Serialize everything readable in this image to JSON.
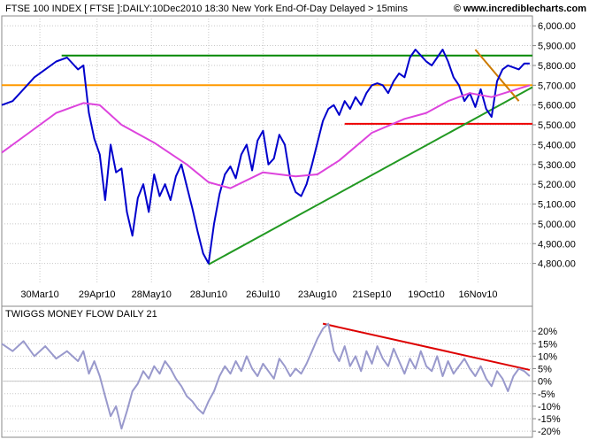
{
  "header": {
    "title": "FTSE 100 INDEX [ FTSE ]:DAILY:10Dec2010 18:30 New York End-Of-Day Delayed > 15mins",
    "brand": "© www.incrediblecharts.com"
  },
  "colors": {
    "price": "#0000cc",
    "ma": "#dd44dd",
    "money_flow": "#9999cc",
    "resistance": "#008800",
    "support_orange": "#ff9900",
    "support_red": "#ee0000",
    "downtrend": "#cc7a00",
    "trendline_green": "#229922",
    "mf_trendline": "#dd0000",
    "grid": "#c8c8c8",
    "panel_bg": "#ffffff"
  },
  "chart_data": [
    {
      "type": "line",
      "title": "FTSE 100 INDEX [ FTSE ]:DAILY:10Dec2010 18:30 New York End-Of-Day Delayed > 15mins",
      "xlabel": "",
      "ylabel": "",
      "grid": true,
      "x_range": [
        0,
        195
      ],
      "ylim": [
        4700,
        6050
      ],
      "x_ticks": [
        {
          "x": 14,
          "label": "30Mar10"
        },
        {
          "x": 35,
          "label": "29Apr10"
        },
        {
          "x": 55,
          "label": "28May10"
        },
        {
          "x": 76,
          "label": "28Jun10"
        },
        {
          "x": 96,
          "label": "26Jul10"
        },
        {
          "x": 116,
          "label": "23Aug10"
        },
        {
          "x": 136,
          "label": "21Sep10"
        },
        {
          "x": 156,
          "label": "19Oct10"
        },
        {
          "x": 175,
          "label": "16Nov10"
        }
      ],
      "y_ticks": [
        "4,800.00",
        "4,900.00",
        "5,000.00",
        "5,100.00",
        "5,200.00",
        "5,300.00",
        "5,400.00",
        "5,500.00",
        "5,600.00",
        "5,700.00",
        "5,800.00",
        "5,900.00",
        "6,000.00"
      ],
      "y_tick_values": [
        4800,
        4900,
        5000,
        5100,
        5200,
        5300,
        5400,
        5500,
        5600,
        5700,
        5800,
        5900,
        6000
      ],
      "series": [
        {
          "kind": "price",
          "x": [
            0,
            4,
            8,
            12,
            16,
            20,
            24,
            28,
            30,
            32,
            34,
            36,
            38,
            40,
            42,
            44,
            46,
            48,
            50,
            52,
            54,
            56,
            58,
            60,
            62,
            64,
            66,
            68,
            70,
            72,
            74,
            76,
            78,
            80,
            82,
            84,
            86,
            88,
            90,
            92,
            94,
            96,
            98,
            100,
            102,
            104,
            106,
            108,
            110,
            112,
            114,
            116,
            118,
            120,
            122,
            124,
            126,
            128,
            130,
            132,
            134,
            136,
            138,
            140,
            142,
            144,
            146,
            148,
            150,
            152,
            154,
            156,
            158,
            160,
            162,
            164,
            166,
            168,
            170,
            172,
            174,
            176,
            178,
            180,
            182,
            184,
            186,
            188,
            190,
            192,
            194
          ],
          "values": [
            5600,
            5620,
            5680,
            5740,
            5780,
            5820,
            5840,
            5780,
            5800,
            5560,
            5430,
            5350,
            5120,
            5400,
            5260,
            5280,
            5060,
            4940,
            5130,
            5200,
            5060,
            5250,
            5140,
            5200,
            5120,
            5240,
            5300,
            5190,
            5080,
            4960,
            4850,
            4800,
            5000,
            5150,
            5250,
            5290,
            5230,
            5350,
            5400,
            5270,
            5420,
            5470,
            5300,
            5330,
            5450,
            5400,
            5230,
            5160,
            5140,
            5200,
            5300,
            5410,
            5520,
            5580,
            5600,
            5550,
            5620,
            5580,
            5640,
            5600,
            5660,
            5700,
            5710,
            5700,
            5660,
            5720,
            5760,
            5740,
            5840,
            5880,
            5850,
            5820,
            5800,
            5840,
            5880,
            5820,
            5740,
            5700,
            5620,
            5660,
            5590,
            5680,
            5580,
            5540,
            5720,
            5780,
            5800,
            5790,
            5780,
            5810,
            5810
          ]
        },
        {
          "kind": "moving_average",
          "x": [
            0,
            10,
            20,
            30,
            36,
            44,
            56,
            68,
            76,
            84,
            96,
            108,
            116,
            124,
            136,
            148,
            156,
            164,
            172,
            180,
            194
          ],
          "values": [
            5360,
            5460,
            5560,
            5610,
            5600,
            5500,
            5410,
            5300,
            5210,
            5180,
            5260,
            5240,
            5250,
            5320,
            5460,
            5530,
            5560,
            5620,
            5660,
            5640,
            5700
          ]
        }
      ],
      "annotations": [
        {
          "kind": "horizontal",
          "y": 5850,
          "x0": 22,
          "x1": 195,
          "color_key": "resistance"
        },
        {
          "kind": "horizontal",
          "y": 5700,
          "x0": 0,
          "x1": 195,
          "color_key": "support_orange"
        },
        {
          "kind": "horizontal",
          "y": 5505,
          "x0": 126,
          "x1": 195,
          "color_key": "support_red"
        },
        {
          "kind": "segment",
          "x0": 76,
          "y0": 4795,
          "x1": 195,
          "y1": 5690,
          "color_key": "trendline_green"
        },
        {
          "kind": "segment",
          "x0": 174,
          "y0": 5880,
          "x1": 190,
          "y1": 5620,
          "color_key": "downtrend"
        }
      ]
    },
    {
      "type": "line",
      "title": "TWIGGS MONEY FLOW DAILY 21",
      "xlabel": "",
      "ylabel": "",
      "grid": true,
      "x_range": [
        0,
        195
      ],
      "ylim": [
        -21,
        25
      ],
      "y_ticks": [
        "20%",
        "15%",
        "10%",
        "5%",
        "0%",
        "-5%",
        "-10%",
        "-15%",
        "-20%"
      ],
      "y_tick_values": [
        20,
        15,
        10,
        5,
        0,
        -5,
        -10,
        -15,
        -20
      ],
      "series": [
        {
          "name": "TWIGGS MONEY FLOW DAILY 21",
          "x": [
            0,
            4,
            8,
            12,
            16,
            20,
            24,
            28,
            30,
            32,
            34,
            36,
            38,
            40,
            42,
            44,
            46,
            48,
            50,
            52,
            54,
            56,
            58,
            60,
            62,
            64,
            66,
            68,
            70,
            72,
            74,
            76,
            78,
            80,
            82,
            84,
            86,
            88,
            90,
            92,
            94,
            96,
            98,
            100,
            102,
            104,
            106,
            108,
            110,
            112,
            114,
            116,
            118,
            120,
            122,
            124,
            126,
            128,
            130,
            132,
            134,
            136,
            138,
            140,
            142,
            144,
            146,
            148,
            150,
            152,
            154,
            156,
            158,
            160,
            162,
            164,
            166,
            168,
            170,
            172,
            174,
            176,
            178,
            180,
            182,
            184,
            186,
            188,
            190,
            192,
            194
          ],
          "values": [
            15,
            12,
            16,
            10,
            14,
            9,
            12,
            8,
            12,
            3,
            8,
            2,
            -6,
            -14,
            -10,
            -19,
            -12,
            -4,
            -1,
            4,
            1,
            6,
            3,
            8,
            5,
            1,
            -2,
            -6,
            -8,
            -11,
            -13,
            -8,
            -4,
            2,
            6,
            3,
            8,
            4,
            10,
            5,
            2,
            7,
            4,
            1,
            9,
            6,
            2,
            5,
            3,
            7,
            12,
            17,
            21,
            23,
            12,
            8,
            14,
            6,
            10,
            4,
            12,
            7,
            14,
            9,
            6,
            13,
            8,
            3,
            9,
            5,
            12,
            6,
            4,
            10,
            2,
            8,
            3,
            6,
            9,
            5,
            2,
            6,
            1,
            -2,
            4,
            1,
            -4,
            2,
            5,
            4,
            2
          ]
        }
      ],
      "annotations": [
        {
          "kind": "segment",
          "x0": 118,
          "y0": 23,
          "x1": 194,
          "y1": 4.5,
          "color_key": "mf_trendline"
        },
        {
          "kind": "horizontal",
          "y": 0,
          "x0": 0,
          "x1": 195,
          "color_key": "grid"
        }
      ]
    }
  ]
}
